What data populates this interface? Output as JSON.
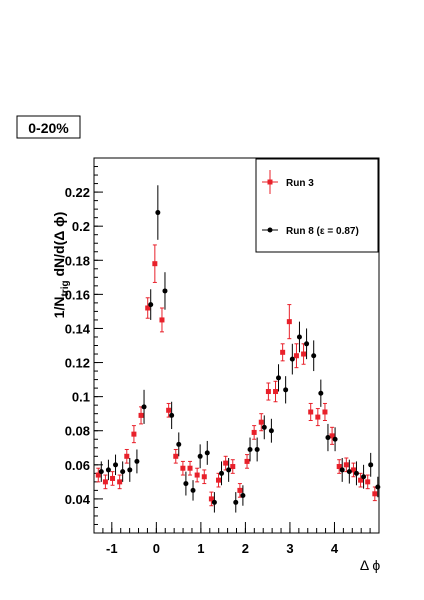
{
  "label_box": "0-20%",
  "chart_data": {
    "type": "scatter",
    "xlabel": "Δ ϕ",
    "ylabel": {
      "prefix": "1/N",
      "subscript": "trig",
      "suffix": " dN/d(Δ ϕ)"
    },
    "xlim": [
      -1.4,
      5.0
    ],
    "ylim": [
      0.02,
      0.24
    ],
    "x_ticks": [
      -1,
      0,
      1,
      2,
      3,
      4
    ],
    "y_ticks": [
      0.04,
      0.06,
      0.08,
      0.1,
      0.12,
      0.14,
      0.16,
      0.18,
      0.2,
      0.22
    ],
    "y_tick_labels": [
      "0.04",
      "0.06",
      "0.08",
      "0.1",
      "0.12",
      "0.14",
      "0.16",
      "0.18",
      "0.2",
      "0.22"
    ],
    "x_tick_labels": [
      "-1",
      "0",
      "1",
      "2",
      "3",
      "4"
    ],
    "legend_position": "top-right",
    "series": [
      {
        "name": "Run 3",
        "color": "#e8202a",
        "marker": "square",
        "points": [
          [
            -1.27,
            0.054,
            0.004
          ],
          [
            -1.11,
            0.05,
            0.004
          ],
          [
            -0.95,
            0.052,
            0.004
          ],
          [
            -0.79,
            0.05,
            0.004
          ],
          [
            -0.63,
            0.065,
            0.004
          ],
          [
            -0.47,
            0.078,
            0.005
          ],
          [
            -0.31,
            0.089,
            0.005
          ],
          [
            -0.16,
            0.152,
            0.006
          ],
          [
            0.0,
            0.178,
            0.011
          ],
          [
            0.16,
            0.145,
            0.007
          ],
          [
            0.31,
            0.092,
            0.004
          ],
          [
            0.47,
            0.065,
            0.004
          ],
          [
            0.63,
            0.058,
            0.004
          ],
          [
            0.79,
            0.058,
            0.004
          ],
          [
            0.95,
            0.054,
            0.004
          ],
          [
            1.11,
            0.053,
            0.004
          ],
          [
            1.27,
            0.04,
            0.004
          ],
          [
            1.43,
            0.051,
            0.004
          ],
          [
            1.59,
            0.061,
            0.004
          ],
          [
            1.75,
            0.059,
            0.004
          ],
          [
            1.91,
            0.045,
            0.004
          ],
          [
            2.07,
            0.062,
            0.004
          ],
          [
            2.23,
            0.079,
            0.004
          ],
          [
            2.39,
            0.085,
            0.005
          ],
          [
            2.55,
            0.103,
            0.005
          ],
          [
            2.71,
            0.103,
            0.006
          ],
          [
            2.87,
            0.126,
            0.005
          ],
          [
            3.02,
            0.144,
            0.01
          ],
          [
            3.18,
            0.124,
            0.007
          ],
          [
            3.34,
            0.125,
            0.006
          ],
          [
            3.5,
            0.091,
            0.005
          ],
          [
            3.66,
            0.088,
            0.005
          ],
          [
            3.82,
            0.091,
            0.005
          ],
          [
            3.98,
            0.077,
            0.005
          ],
          [
            4.14,
            0.059,
            0.004
          ],
          [
            4.3,
            0.06,
            0.004
          ],
          [
            4.46,
            0.057,
            0.004
          ],
          [
            4.62,
            0.051,
            0.004
          ],
          [
            4.78,
            0.05,
            0.004
          ],
          [
            4.94,
            0.043,
            0.004
          ]
        ]
      },
      {
        "name": "Run 8 (ε = 0.87)",
        "color": "#000000",
        "marker": "circle",
        "points": [
          [
            -1.27,
            0.056,
            0.006
          ],
          [
            -1.11,
            0.057,
            0.006
          ],
          [
            -0.95,
            0.06,
            0.006
          ],
          [
            -0.79,
            0.056,
            0.006
          ],
          [
            -0.63,
            0.057,
            0.007
          ],
          [
            -0.47,
            0.062,
            0.007
          ],
          [
            -0.31,
            0.094,
            0.01
          ],
          [
            -0.16,
            0.154,
            0.009
          ],
          [
            0.0,
            0.208,
            0.016
          ],
          [
            0.16,
            0.162,
            0.011
          ],
          [
            0.31,
            0.089,
            0.008
          ],
          [
            0.47,
            0.072,
            0.007
          ],
          [
            0.63,
            0.049,
            0.007
          ],
          [
            0.79,
            0.045,
            0.006
          ],
          [
            0.95,
            0.065,
            0.007
          ],
          [
            1.11,
            0.067,
            0.007
          ],
          [
            1.27,
            0.038,
            0.006
          ],
          [
            1.43,
            0.055,
            0.007
          ],
          [
            1.59,
            0.057,
            0.007
          ],
          [
            1.75,
            0.038,
            0.006
          ],
          [
            1.91,
            0.042,
            0.006
          ],
          [
            2.07,
            0.069,
            0.007
          ],
          [
            2.23,
            0.069,
            0.007
          ],
          [
            2.39,
            0.082,
            0.007
          ],
          [
            2.55,
            0.08,
            0.007
          ],
          [
            2.71,
            0.111,
            0.008
          ],
          [
            2.87,
            0.104,
            0.008
          ],
          [
            3.02,
            0.122,
            0.009
          ],
          [
            3.18,
            0.135,
            0.009
          ],
          [
            3.34,
            0.131,
            0.009
          ],
          [
            3.5,
            0.124,
            0.009
          ],
          [
            3.66,
            0.102,
            0.008
          ],
          [
            3.82,
            0.076,
            0.008
          ],
          [
            3.98,
            0.075,
            0.007
          ],
          [
            4.14,
            0.057,
            0.007
          ],
          [
            4.3,
            0.056,
            0.007
          ],
          [
            4.46,
            0.055,
            0.007
          ],
          [
            4.62,
            0.053,
            0.007
          ],
          [
            4.78,
            0.06,
            0.007
          ],
          [
            4.94,
            0.047,
            0.006
          ]
        ]
      }
    ]
  }
}
